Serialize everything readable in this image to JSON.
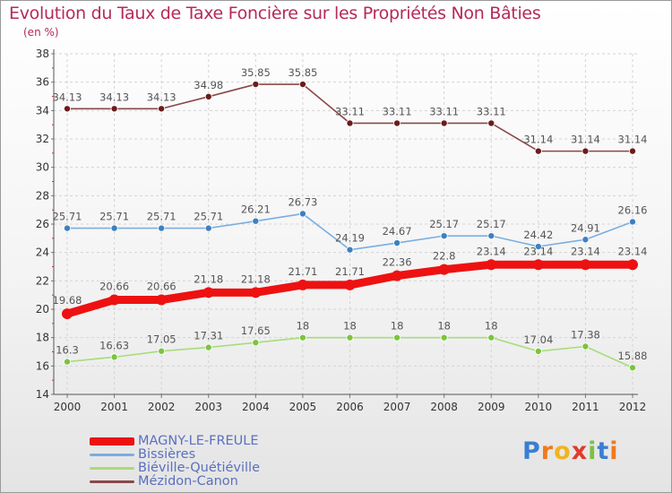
{
  "title": "Evolution du Taux de Taxe Foncière sur les Propriétés Non Bâties",
  "subtitle": "(en %)",
  "logo": {
    "text": "Proxiti",
    "letters": [
      "P",
      "r",
      "o",
      "x",
      "i",
      "t",
      "i"
    ],
    "colors": [
      "#3a7fd1",
      "#f07a1e",
      "#f0b41e",
      "#e23b2b",
      "#7cc242",
      "#3a7fd1",
      "#f07a1e"
    ]
  },
  "chart_data": {
    "type": "line",
    "title": "Evolution du Taux de Taxe Foncière sur les Propriétés Non Bâties",
    "ylabel": "(en %)",
    "xlabel": "",
    "x": [
      "2000",
      "2001",
      "2002",
      "2003",
      "2004",
      "2005",
      "2006",
      "2007",
      "2008",
      "2009",
      "2010",
      "2011",
      "2012"
    ],
    "ylim": [
      14,
      38
    ],
    "yticks": [
      14,
      16,
      18,
      20,
      22,
      24,
      26,
      28,
      30,
      32,
      34,
      36,
      38
    ],
    "grid": "horizontal",
    "legend_position": "bottom-left",
    "series": [
      {
        "name": "MAGNY-LE-FREULE",
        "color": "#ee1111",
        "marker_color": "#ee1111",
        "width": "thick",
        "values": [
          19.68,
          20.66,
          20.66,
          21.18,
          21.18,
          21.71,
          21.71,
          22.36,
          22.8,
          23.14,
          23.14,
          23.14,
          23.14
        ],
        "labels": [
          "19.68",
          "20.66",
          "20.66",
          "21.18",
          "21.18",
          "21.71",
          "21.71",
          "22.36",
          "22.8",
          "23.14",
          "23.14",
          "23.14",
          "23.14"
        ]
      },
      {
        "name": "Bissières",
        "color": "#7aaee0",
        "marker_color": "#3d80c0",
        "width": "thin",
        "values": [
          25.71,
          25.71,
          25.71,
          25.71,
          26.21,
          26.73,
          24.19,
          24.67,
          25.17,
          25.17,
          24.42,
          24.91,
          26.16
        ],
        "labels": [
          "25.71",
          "25.71",
          "25.71",
          "25.71",
          "26.21",
          "26.73",
          "24.19",
          "24.67",
          "25.17",
          "25.17",
          "24.42",
          "24.91",
          "26.16"
        ]
      },
      {
        "name": "Biéville-Quétiéville",
        "color": "#a8dc7a",
        "marker_color": "#7cc43e",
        "width": "thin",
        "values": [
          16.3,
          16.63,
          17.05,
          17.31,
          17.65,
          18,
          18,
          18,
          18,
          18,
          17.04,
          17.38,
          15.88
        ],
        "labels": [
          "16.3",
          "16.63",
          "17.05",
          "17.31",
          "17.65",
          "18",
          "18",
          "18",
          "18",
          "18",
          "17.04",
          "17.38",
          "15.88"
        ]
      },
      {
        "name": "Mézidon-Canon",
        "color": "#8a4848",
        "marker_color": "#6a1c1c",
        "width": "thin",
        "values": [
          34.13,
          34.13,
          34.13,
          34.98,
          35.85,
          35.85,
          33.11,
          33.11,
          33.11,
          33.11,
          31.14,
          31.14,
          31.14
        ],
        "labels": [
          "34.13",
          "34.13",
          "34.13",
          "34.98",
          "35.85",
          "35.85",
          "33.11",
          "33.11",
          "33.11",
          "33.11",
          "31.14",
          "31.14",
          "31.14"
        ]
      }
    ]
  }
}
